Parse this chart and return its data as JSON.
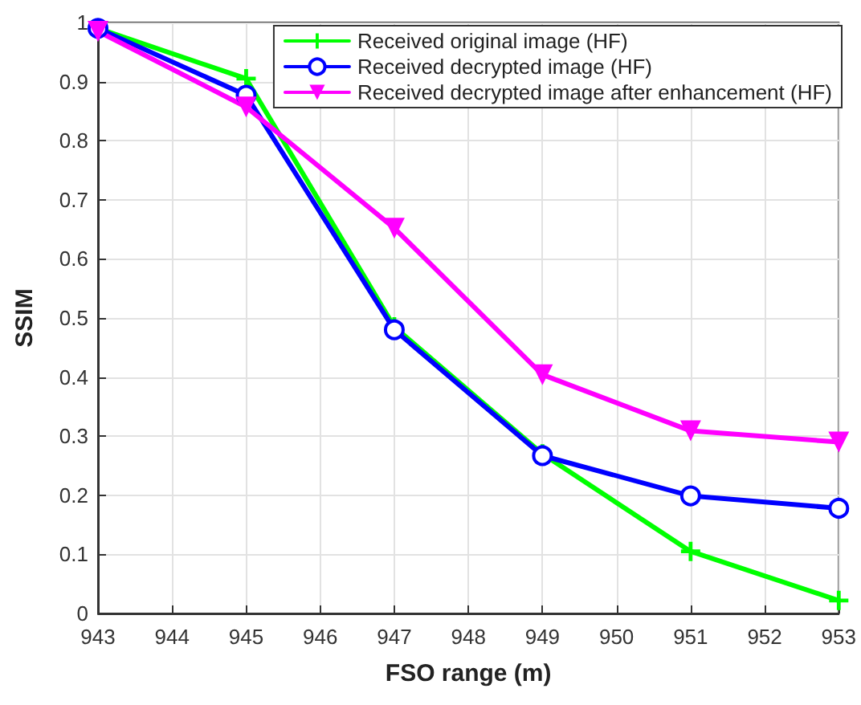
{
  "chart_data": {
    "type": "line",
    "xlabel": "FSO range (m)",
    "ylabel": "SSIM",
    "x": [
      943,
      945,
      947,
      949,
      951,
      953
    ],
    "series": [
      {
        "name": "Received original image (HF)",
        "color": "#00ff00",
        "marker": "cross",
        "values": [
          0.99,
          0.905,
          0.485,
          0.27,
          0.105,
          0.022
        ]
      },
      {
        "name": "Received decrypted image (HF)",
        "color": "#0000ff",
        "marker": "circle",
        "values": [
          0.99,
          0.877,
          0.48,
          0.267,
          0.199,
          0.178
        ]
      },
      {
        "name": "Received decrypted image after enhancement (HF)",
        "color": "#ff00ff",
        "marker": "triangle",
        "values": [
          0.985,
          0.857,
          0.652,
          0.404,
          0.309,
          0.29
        ]
      }
    ],
    "xlim": [
      943,
      953
    ],
    "xticks": [
      943,
      944,
      945,
      946,
      947,
      948,
      949,
      950,
      951,
      952,
      953
    ],
    "ylim": [
      0,
      1
    ],
    "yticks": [
      0,
      0.1,
      0.2,
      0.3,
      0.4,
      0.5,
      0.6,
      0.7,
      0.8,
      0.9,
      1
    ],
    "grid": true,
    "legend": "top right",
    "line_style": "solid"
  }
}
